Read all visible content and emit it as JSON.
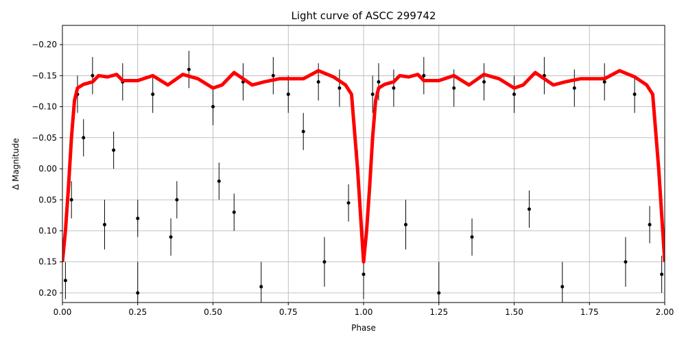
{
  "chart_data": {
    "type": "scatter",
    "title": "Light curve of ASCC 299742",
    "x_label": "Phase",
    "y_label": "Δ Magnitude",
    "xlim": [
      0,
      2
    ],
    "ylim": [
      -0.231,
      0.2155
    ],
    "y_inverted": true,
    "grid": true,
    "xticks": [
      {
        "value": 0,
        "label": "0.00"
      },
      {
        "value": 0.25,
        "label": "0.25"
      },
      {
        "value": 0.5,
        "label": "0.50"
      },
      {
        "value": 0.75,
        "label": "0.75"
      },
      {
        "value": 1,
        "label": "1.00"
      },
      {
        "value": 1.25,
        "label": "1.25"
      },
      {
        "value": 1.5,
        "label": "1.50"
      },
      {
        "value": 1.75,
        "label": "1.75"
      },
      {
        "value": 2,
        "label": "2.00"
      }
    ],
    "yticks": [
      {
        "value": -0.2,
        "label": "−0.20"
      },
      {
        "value": -0.15,
        "label": "−0.15"
      },
      {
        "value": -0.1,
        "label": "−0.10"
      },
      {
        "value": -0.05,
        "label": "−0.05"
      },
      {
        "value": 0,
        "label": "0.00"
      },
      {
        "value": 0.05,
        "label": "0.05"
      },
      {
        "value": 0.1,
        "label": "0.10"
      },
      {
        "value": 0.15,
        "label": "0.15"
      },
      {
        "value": 0.2,
        "label": "0.20"
      }
    ],
    "points": {
      "color": "#000000",
      "x": [
        0.01,
        0.03,
        0.05,
        0.07,
        0.1,
        0.14,
        0.17,
        0.2,
        0.25,
        0.25,
        0.3,
        0.36,
        0.38,
        0.42,
        0.5,
        0.52,
        0.57,
        0.6,
        0.66,
        0.7,
        0.75,
        0.8,
        0.85,
        0.87,
        0.92,
        0.95,
        0.98,
        1.0,
        1.03,
        1.05,
        1.1,
        1.14,
        1.2,
        1.25,
        1.3,
        1.36,
        1.4,
        1.5,
        1.55,
        1.6,
        1.66,
        1.7,
        1.8,
        1.87,
        1.9,
        1.95,
        1.99
      ],
      "y": [
        0.18,
        0.05,
        -0.12,
        -0.05,
        -0.15,
        0.09,
        -0.03,
        -0.14,
        0.08,
        0.2,
        -0.12,
        0.11,
        0.05,
        -0.16,
        -0.1,
        0.02,
        0.07,
        -0.14,
        0.19,
        -0.15,
        -0.12,
        -0.06,
        -0.14,
        0.15,
        -0.13,
        0.055,
        0.0,
        0.17,
        -0.12,
        -0.14,
        -0.13,
        0.09,
        -0.15,
        0.2,
        -0.13,
        0.11,
        -0.14,
        -0.12,
        0.065,
        -0.15,
        0.19,
        -0.13,
        -0.14,
        0.15,
        -0.12,
        0.09,
        0.17
      ],
      "yerr": [
        0.03,
        0.03,
        0.03,
        0.03,
        0.03,
        0.04,
        0.03,
        0.03,
        0.03,
        0.05,
        0.03,
        0.03,
        0.03,
        0.03,
        0.03,
        0.03,
        0.03,
        0.03,
        0.04,
        0.03,
        0.03,
        0.03,
        0.03,
        0.04,
        0.03,
        0.03,
        0.03,
        0.04,
        0.03,
        0.03,
        0.03,
        0.04,
        0.03,
        0.05,
        0.03,
        0.03,
        0.03,
        0.03,
        0.03,
        0.03,
        0.04,
        0.03,
        0.03,
        0.04,
        0.03,
        0.03,
        0.03
      ]
    },
    "model": {
      "color": "#ff0000",
      "x": [
        0,
        0.01,
        0.02,
        0.03,
        0.04,
        0.05,
        0.07,
        0.1,
        0.12,
        0.15,
        0.18,
        0.2,
        0.25,
        0.3,
        0.35,
        0.4,
        0.45,
        0.5,
        0.53,
        0.57,
        0.6,
        0.63,
        0.67,
        0.72,
        0.8,
        0.85,
        0.9,
        0.94,
        0.96,
        0.98,
        1.0,
        1.01,
        1.02,
        1.03,
        1.04,
        1.05,
        1.07,
        1.1,
        1.12,
        1.15,
        1.18,
        1.2,
        1.25,
        1.3,
        1.35,
        1.4,
        1.45,
        1.5,
        1.53,
        1.57,
        1.6,
        1.63,
        1.67,
        1.72,
        1.8,
        1.85,
        1.9,
        1.94,
        1.96,
        1.98,
        2.0
      ],
      "y": [
        0.15,
        0.1,
        0.03,
        -0.05,
        -0.11,
        -0.13,
        -0.136,
        -0.14,
        -0.15,
        -0.148,
        -0.152,
        -0.142,
        -0.142,
        -0.15,
        -0.135,
        -0.152,
        -0.145,
        -0.13,
        -0.135,
        -0.155,
        -0.145,
        -0.135,
        -0.14,
        -0.145,
        -0.145,
        -0.158,
        -0.148,
        -0.135,
        -0.12,
        0.0,
        0.15,
        0.1,
        0.03,
        -0.05,
        -0.11,
        -0.13,
        -0.136,
        -0.14,
        -0.15,
        -0.148,
        -0.152,
        -0.142,
        -0.142,
        -0.15,
        -0.135,
        -0.152,
        -0.145,
        -0.13,
        -0.135,
        -0.155,
        -0.145,
        -0.135,
        -0.14,
        -0.145,
        -0.145,
        -0.158,
        -0.148,
        -0.135,
        -0.12,
        0.0,
        0.15
      ]
    }
  }
}
